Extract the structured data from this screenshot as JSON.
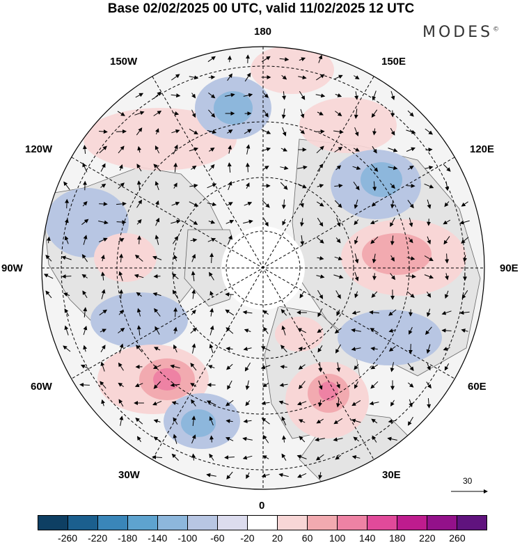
{
  "title": "Base 02/02/2025 00 UTC, valid 11/02/2025 12 UTC",
  "brand": {
    "name": "MODES",
    "mark": "©"
  },
  "lon_labels": {
    "top": "180",
    "bottom": "0",
    "left": "90W",
    "right": "90E",
    "top_left_1": "150W",
    "top_left_2": "120W",
    "top_right_1": "150E",
    "top_right_2": "120E",
    "bottom_left_1": "60W",
    "bottom_left_2": "30W",
    "bottom_right_1": "60E",
    "bottom_right_2": "30E"
  },
  "wind_scale": {
    "label": "30"
  },
  "colorbar": {
    "ticks": [
      "-260",
      "-220",
      "-180",
      "-140",
      "-100",
      "-60",
      "-20",
      "20",
      "60",
      "100",
      "140",
      "180",
      "220",
      "260"
    ],
    "colors": [
      "#0e3f63",
      "#1b5f8e",
      "#3a86b9",
      "#5ea3cf",
      "#8db7dc",
      "#b8c6e3",
      "#dcdcee",
      "#ffffff",
      "#f8d6d6",
      "#f2aab0",
      "#ee82a4",
      "#e14a9a",
      "#be1c8e",
      "#93118a",
      "#60137e"
    ]
  },
  "anomaly_colors": {
    "neg_weak": "#dcdcee",
    "neg_mid": "#b8c6e3",
    "neg_strong": "#8db7dc",
    "pos_weak": "#f8d6d6",
    "pos_mid": "#f2aab0",
    "pos_strong": "#ee82a4",
    "land": "#e3e3e3"
  }
}
